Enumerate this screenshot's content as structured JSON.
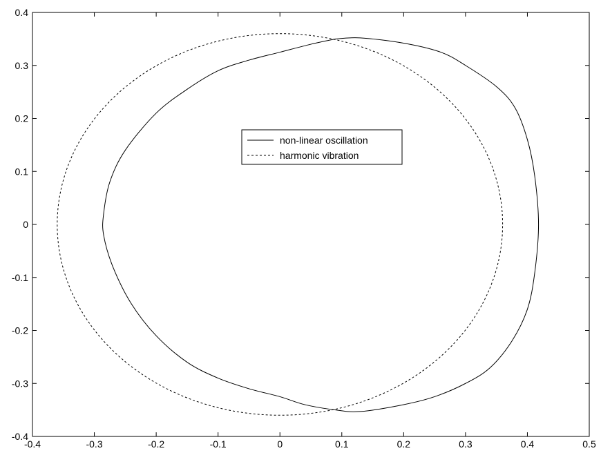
{
  "chart_data": {
    "type": "line",
    "title": "",
    "xlabel": "",
    "ylabel": "",
    "xlim": [
      -0.4,
      0.5
    ],
    "ylim": [
      -0.4,
      0.4
    ],
    "grid": false,
    "legend_position": "center",
    "x_ticks": [
      {
        "value": -0.4,
        "label": "-0.4"
      },
      {
        "value": -0.3,
        "label": "-0.3"
      },
      {
        "value": -0.2,
        "label": "-0.2"
      },
      {
        "value": -0.1,
        "label": "-0.1"
      },
      {
        "value": 0,
        "label": "0"
      },
      {
        "value": 0.1,
        "label": "0.1"
      },
      {
        "value": 0.2,
        "label": "0.2"
      },
      {
        "value": 0.3,
        "label": "0.3"
      },
      {
        "value": 0.4,
        "label": "0.4"
      },
      {
        "value": 0.5,
        "label": "0.5"
      }
    ],
    "y_ticks": [
      {
        "value": -0.4,
        "label": "-0.4"
      },
      {
        "value": -0.3,
        "label": "-0.3"
      },
      {
        "value": -0.2,
        "label": "-0.2"
      },
      {
        "value": -0.1,
        "label": "-0.1"
      },
      {
        "value": 0,
        "label": "0"
      },
      {
        "value": 0.1,
        "label": "0.1"
      },
      {
        "value": 0.2,
        "label": "0.2"
      },
      {
        "value": 0.3,
        "label": "0.3"
      },
      {
        "value": 0.4,
        "label": "0.4"
      }
    ],
    "series": [
      {
        "name": "non-linear oscillation",
        "line_style": "solid",
        "color": "#000000",
        "points": [
          [
            0.09,
            0.35
          ],
          [
            0.13,
            0.352
          ],
          [
            0.2,
            0.342
          ],
          [
            0.26,
            0.325
          ],
          [
            0.3,
            0.3
          ],
          [
            0.35,
            0.26
          ],
          [
            0.38,
            0.22
          ],
          [
            0.4,
            0.16
          ],
          [
            0.412,
            0.09
          ],
          [
            0.418,
            0.0
          ],
          [
            0.412,
            -0.09
          ],
          [
            0.4,
            -0.16
          ],
          [
            0.375,
            -0.22
          ],
          [
            0.34,
            -0.27
          ],
          [
            0.3,
            -0.3
          ],
          [
            0.25,
            -0.325
          ],
          [
            0.2,
            -0.34
          ],
          [
            0.13,
            -0.353
          ],
          [
            0.09,
            -0.35
          ],
          [
            0.04,
            -0.34
          ],
          [
            0.0,
            -0.325
          ],
          [
            -0.05,
            -0.31
          ],
          [
            -0.1,
            -0.29
          ],
          [
            -0.15,
            -0.26
          ],
          [
            -0.2,
            -0.21
          ],
          [
            -0.24,
            -0.15
          ],
          [
            -0.27,
            -0.08
          ],
          [
            -0.285,
            -0.02
          ],
          [
            -0.285,
            0.02
          ],
          [
            -0.275,
            0.08
          ],
          [
            -0.25,
            0.14
          ],
          [
            -0.2,
            0.21
          ],
          [
            -0.15,
            0.255
          ],
          [
            -0.1,
            0.29
          ],
          [
            -0.05,
            0.31
          ],
          [
            0.0,
            0.325
          ],
          [
            0.05,
            0.34
          ],
          [
            0.09,
            0.35
          ]
        ]
      },
      {
        "name": "harmonic vibration",
        "line_style": "dashed",
        "color": "#000000",
        "ellipse": {
          "cx": 0,
          "cy": 0,
          "rx": 0.36,
          "ry": 0.36,
          "samples": 120
        }
      }
    ]
  },
  "legend": {
    "items": [
      {
        "label": "non-linear oscillation",
        "line_style": "solid"
      },
      {
        "label": "harmonic vibration",
        "line_style": "dashed"
      }
    ]
  }
}
